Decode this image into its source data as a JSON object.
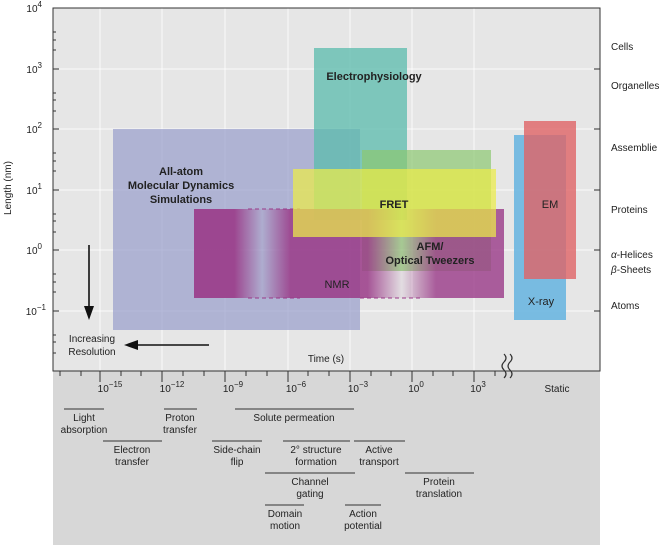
{
  "y_axis": {
    "label": "Length (nm)",
    "ticks": [
      {
        "base": "10",
        "exp": "4"
      },
      {
        "base": "10",
        "exp": "3"
      },
      {
        "base": "10",
        "exp": "2"
      },
      {
        "base": "10",
        "exp": "1"
      },
      {
        "base": "10",
        "exp": "0"
      },
      {
        "base": "10",
        "exp": "−1"
      }
    ]
  },
  "x_axis": {
    "label": "Time (s)",
    "ticks": [
      {
        "base": "10",
        "exp": "−15"
      },
      {
        "base": "10",
        "exp": "−12"
      },
      {
        "base": "10",
        "exp": "−9"
      },
      {
        "base": "10",
        "exp": "−6"
      },
      {
        "base": "10",
        "exp": "−3"
      },
      {
        "base": "10",
        "exp": "0"
      },
      {
        "base": "10",
        "exp": "3"
      }
    ],
    "static_label": "Static"
  },
  "scale_labels": {
    "cells": "Cells",
    "organelles": "Organelles",
    "assemblies": "Assemblie",
    "proteins": "Proteins",
    "helices_symbol": "α",
    "helices": "-Helices",
    "sheets_symbol": "β",
    "sheets": "-Sheets",
    "atoms": "Atoms"
  },
  "techniques": {
    "md": [
      "All-atom",
      "Molecular Dynamics",
      "Simulations"
    ],
    "electrophysiology": "Electrophysiology",
    "fret": "FRET",
    "afm": [
      "AFM/",
      "Optical Tweezers"
    ],
    "nmr": "NMR",
    "em": "EM",
    "xray": "X-ray"
  },
  "resolution_label": [
    "Increasing",
    "Resolution"
  ],
  "processes": {
    "light_absorption": [
      "Light",
      "absorption"
    ],
    "proton_transfer": [
      "Proton",
      "transfer"
    ],
    "solute_permeation": [
      "Solute permeation"
    ],
    "electron_transfer": [
      "Electron",
      "transfer"
    ],
    "side_chain_flip": [
      "Side-chain",
      "flip"
    ],
    "structure_formation": [
      "2° structure",
      "formation"
    ],
    "active_transport": [
      "Active",
      "transport"
    ],
    "channel_gating": [
      "Channel",
      "gating"
    ],
    "protein_translation": [
      "Protein",
      "translation"
    ],
    "domain_motion": [
      "Domain",
      "motion"
    ],
    "action_potential": [
      "Action",
      "potential"
    ]
  },
  "colors": {
    "md": "#9aa0cc",
    "electrophysiology": "#5fbcae",
    "fret": "#ecec4a",
    "afm": "#8cc870",
    "nmr": "#9a3a88",
    "em": "#e06466",
    "xray": "#6cb6e0",
    "plot_bg": "#e6e6e6",
    "timeline_bg": "#d7d7d7"
  }
}
